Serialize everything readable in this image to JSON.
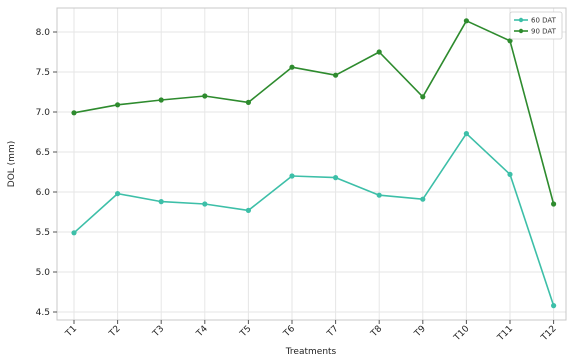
{
  "chart_data": {
    "type": "line",
    "title": "",
    "xlabel": "Treatments",
    "ylabel": "DOL (mm)",
    "categories": [
      "T1",
      "T2",
      "T3",
      "T4",
      "T5",
      "T6",
      "T7",
      "T8",
      "T9",
      "T10",
      "T11",
      "T12"
    ],
    "ylim": [
      4.4,
      8.3
    ],
    "yticks": [
      "4.5",
      "5.0",
      "5.5",
      "6.0",
      "6.5",
      "7.0",
      "7.5",
      "8.0"
    ],
    "grid": true,
    "legend": "top-right",
    "series": [
      {
        "name": "60 DAT",
        "color": "#3dbfa8",
        "values": [
          5.49,
          5.98,
          5.88,
          5.85,
          5.77,
          6.2,
          6.18,
          5.96,
          5.91,
          6.73,
          6.22,
          4.58
        ]
      },
      {
        "name": "90 DAT",
        "color": "#2e8b2e",
        "values": [
          6.99,
          7.09,
          7.15,
          7.2,
          7.12,
          7.56,
          7.46,
          7.75,
          7.19,
          8.14,
          7.89,
          5.85
        ]
      }
    ]
  }
}
